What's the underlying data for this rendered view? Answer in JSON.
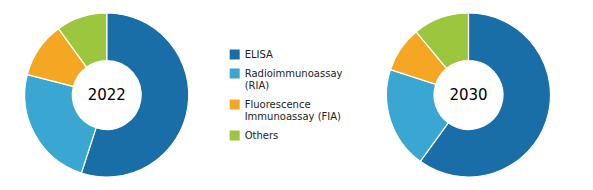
{
  "chart_data": {
    "type": "donut",
    "categories": [
      "ELISA",
      "Radioimmunoassay\n(RIA)",
      "Fluorescence\nImmunoassay (FIA)",
      "Others"
    ],
    "colors": [
      "#1a6ea8",
      "#3aa6d2",
      "#f5a623",
      "#9dc63f"
    ],
    "series": [
      {
        "name": "2022",
        "values": [
          55,
          24,
          11,
          10
        ]
      },
      {
        "name": "2030",
        "values": [
          60,
          20,
          9,
          11
        ]
      }
    ],
    "legend": "center"
  }
}
